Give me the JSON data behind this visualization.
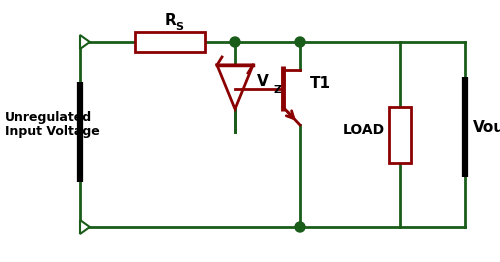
{
  "bg_color": "#ffffff",
  "wire_color": "#1a5c1a",
  "comp_color": "#8b0000",
  "dot_color": "#1a5c1a",
  "wire_lw": 2.0,
  "comp_lw": 2.0,
  "input_label": "Unregulated\nInput Voltage",
  "rs_label": "R",
  "rs_sub": "S",
  "vz_label": "V",
  "vz_sub": "Z",
  "t1_label": "T1",
  "load_label": "LOAD",
  "vout_label": "Vout",
  "figw": 5.0,
  "figh": 2.62,
  "dpi": 100
}
